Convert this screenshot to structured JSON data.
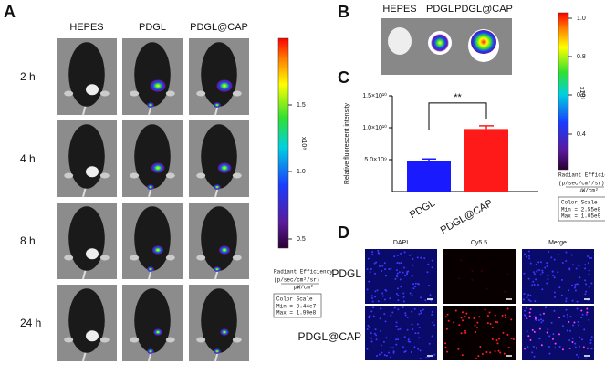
{
  "panels": {
    "a": {
      "label": "A",
      "columns": [
        "HEPES",
        "PDGL",
        "PDGL@CAP"
      ],
      "rows": [
        "2 h",
        "4 h",
        "8 h",
        "24 h"
      ],
      "colorbar": {
        "ticks": [
          "1.5",
          "1.0",
          "0.5"
        ],
        "exponent": "x10⁸",
        "title": "Radiant Efficiency",
        "units_top": "(p/sec/cm²/sr)",
        "units_bottom": "µW/cm²",
        "scale_title": "Color Scale",
        "min": "Min = 3.44e7",
        "max": "Max = 1.99e8"
      }
    },
    "b": {
      "label": "B",
      "columns": [
        "HEPES",
        "PDGL",
        "PDGL@CAP"
      ],
      "colorbar": {
        "ticks": [
          "1.0",
          "0.8",
          "0.6",
          "0.4"
        ],
        "exponent": "x10⁹",
        "title": "Radiant Efficiency",
        "units_top": "(p/sec/cm²/sr)",
        "units_bottom": "µW/cm²",
        "scale_title": "Color Scale",
        "min": "Min = 2.55e8",
        "max": "Max = 1.05e9"
      }
    },
    "d": {
      "label": "D",
      "columns": [
        "DAPI",
        "Cy5.5",
        "Merge"
      ],
      "rows": [
        "PDGL",
        "PDGL@CAP"
      ]
    }
  },
  "chart_data": {
    "type": "bar",
    "panel_label": "C",
    "ylabel": "Relative fluorescent intensity",
    "categories": [
      "PDGL",
      "PDGL@CAP"
    ],
    "values": [
      4800000000,
      9800000000
    ],
    "errors": [
      300000000,
      500000000
    ],
    "colors": [
      "#1a1aff",
      "#ff1a1a"
    ],
    "ylim": [
      0,
      15000000000
    ],
    "yticks": [
      {
        "value": 5000000000,
        "label": "5.0×10⁹"
      },
      {
        "value": 10000000000,
        "label": "1.0×10¹⁰"
      },
      {
        "value": 15000000000,
        "label": "1.5×10¹⁰"
      }
    ],
    "annotation": "**"
  }
}
